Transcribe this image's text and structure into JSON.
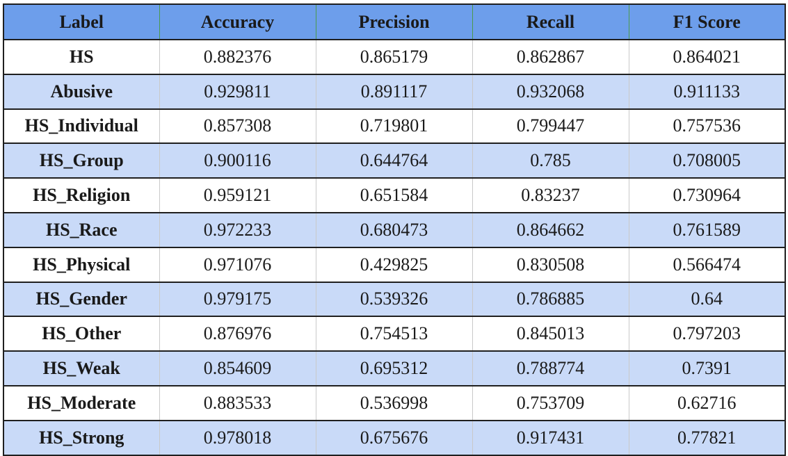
{
  "colors": {
    "header_bg": "#6d9eeb",
    "band_bg": "#c9daf8",
    "plain_bg": "#ffffff"
  },
  "table": {
    "headers": [
      "Label",
      "Accuracy",
      "Precision",
      "Recall",
      "F1 Score"
    ],
    "rows": [
      [
        "HS",
        "0.882376",
        "0.865179",
        "0.862867",
        "0.864021"
      ],
      [
        "Abusive",
        "0.929811",
        "0.891117",
        "0.932068",
        "0.911133"
      ],
      [
        "HS_Individual",
        "0.857308",
        "0.719801",
        "0.799447",
        "0.757536"
      ],
      [
        "HS_Group",
        "0.900116",
        "0.644764",
        "0.785",
        "0.708005"
      ],
      [
        "HS_Religion",
        "0.959121",
        "0.651584",
        "0.83237",
        "0.730964"
      ],
      [
        "HS_Race",
        "0.972233",
        "0.680473",
        "0.864662",
        "0.761589"
      ],
      [
        "HS_Physical",
        "0.971076",
        "0.429825",
        "0.830508",
        "0.566474"
      ],
      [
        "HS_Gender",
        "0.979175",
        "0.539326",
        "0.786885",
        "0.64"
      ],
      [
        "HS_Other",
        "0.876976",
        "0.754513",
        "0.845013",
        "0.797203"
      ],
      [
        "HS_Weak",
        "0.854609",
        "0.695312",
        "0.788774",
        "0.7391"
      ],
      [
        "HS_Moderate",
        "0.883533",
        "0.536998",
        "0.753709",
        "0.62716"
      ],
      [
        "HS_Strong",
        "0.978018",
        "0.675676",
        "0.917431",
        "0.77821"
      ]
    ]
  }
}
